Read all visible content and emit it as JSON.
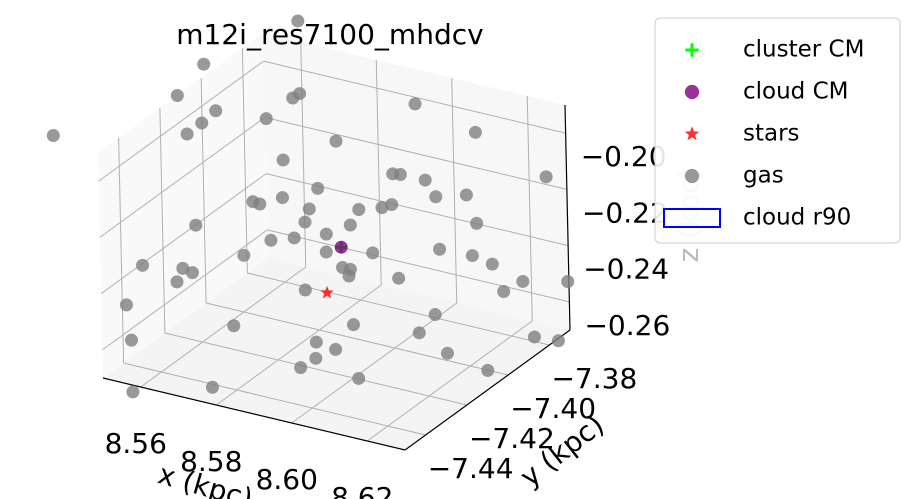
{
  "chart_data": {
    "type": "scatter3d",
    "title": "m12i_res7100_mhdcv",
    "xlabel": "x (kpc)",
    "ylabel": "y (kpc)",
    "zlabel": "z (kpc)",
    "xlim": [
      8.55,
      8.63
    ],
    "ylim": [
      -7.45,
      -7.37
    ],
    "zlim": [
      -0.27,
      -0.19
    ],
    "xticks": [
      8.56,
      8.58,
      {
        "value": 8.6,
        "label": "8.60"
      },
      8.62
    ],
    "yticks": [
      {
        "value": -7.44,
        "label": "−7.44"
      },
      {
        "value": -7.42,
        "label": "−7.42"
      },
      {
        "value": -7.4,
        "label": "−7.40"
      },
      {
        "value": -7.38,
        "label": "−7.38"
      }
    ],
    "zticks": [
      {
        "value": -0.26,
        "label": "−0.26"
      },
      {
        "value": -0.24,
        "label": "−0.24"
      },
      {
        "value": -0.22,
        "label": "−0.22"
      },
      {
        "value": -0.2,
        "label": "−0.20"
      }
    ],
    "grid": true,
    "legend": "upper right",
    "series": [
      {
        "name": "cluster CM",
        "color": "#00ff00",
        "marker": "plus",
        "x": [
          8.593
        ],
        "y": [
          -7.412
        ],
        "z": [
          -0.23
        ]
      },
      {
        "name": "cloud CM",
        "color": "#800080",
        "marker": "circle",
        "x": [
          8.593
        ],
        "y": [
          -7.412
        ],
        "z": [
          -0.23
        ]
      },
      {
        "name": "stars",
        "color": "#ff0000",
        "marker": "star",
        "x": [
          8.587
        ],
        "y": [
          -7.4085
        ],
        "z": [
          -0.25
        ]
      },
      {
        "name": "gas",
        "color": "#808080",
        "marker": "circle",
        "x": [
          8.541,
          8.552,
          8.565,
          8.578,
          8.59,
          8.603,
          8.617,
          8.628,
          8.636,
          8.547,
          8.559,
          8.571,
          8.584,
          8.596,
          8.609,
          8.622,
          8.633,
          8.545,
          8.556,
          8.568,
          8.58,
          8.593,
          8.605,
          8.618,
          8.63,
          8.55,
          8.562,
          8.575,
          8.587,
          8.599,
          8.612,
          8.624,
          8.638,
          8.543,
          8.555,
          8.567,
          8.581,
          8.592,
          8.606,
          8.619,
          8.631,
          8.548,
          8.561,
          8.573,
          8.586,
          8.598,
          8.611,
          8.625,
          8.635,
          8.553,
          8.566,
          8.579,
          8.591,
          8.602,
          8.615,
          8.627,
          8.558,
          8.57,
          8.583,
          8.595,
          8.608,
          8.62,
          8.546,
          8.588,
          8.594,
          8.597,
          8.585,
          8.6,
          8.591,
          8.589
        ],
        "y": [
          -7.455,
          -7.372,
          -7.431,
          -7.398,
          -7.445,
          -7.383,
          -7.426,
          -7.367,
          -7.412,
          -7.388,
          -7.452,
          -7.407,
          -7.376,
          -7.438,
          -7.395,
          -7.449,
          -7.381,
          -7.421,
          -7.364,
          -7.443,
          -7.402,
          -7.429,
          -7.371,
          -7.416,
          -7.392,
          -7.436,
          -7.378,
          -7.451,
          -7.405,
          -7.386,
          -7.441,
          -7.369,
          -7.424,
          -7.399,
          -7.447,
          -7.383,
          -7.418,
          -7.437,
          -7.375,
          -7.409,
          -7.453,
          -7.373,
          -7.427,
          -7.391,
          -7.446,
          -7.414,
          -7.379,
          -7.433,
          -7.396,
          -7.404,
          -7.365,
          -7.439,
          -7.419,
          -7.384,
          -7.448,
          -7.401,
          -7.428,
          -7.389,
          -7.457,
          -7.411,
          -7.374,
          -7.435,
          -7.393,
          -7.41,
          -7.405,
          -7.415,
          -7.42,
          -7.4,
          -7.408,
          -7.412
        ],
        "z": [
          -0.184,
          -0.262,
          -0.221,
          -0.276,
          -0.198,
          -0.243,
          -0.189,
          -0.255,
          -0.232,
          -0.209,
          -0.271,
          -0.194,
          -0.238,
          -0.258,
          -0.216,
          -0.203,
          -0.267,
          -0.247,
          -0.187,
          -0.229,
          -0.279,
          -0.212,
          -0.251,
          -0.196,
          -0.241,
          -0.264,
          -0.205,
          -0.224,
          -0.272,
          -0.191,
          -0.236,
          -0.218,
          -0.253,
          -0.199,
          -0.244,
          -0.269,
          -0.213,
          -0.186,
          -0.227,
          -0.261,
          -0.207,
          -0.249,
          -0.192,
          -0.234,
          -0.217,
          -0.274,
          -0.201,
          -0.239,
          -0.257,
          -0.182,
          -0.226,
          -0.248,
          -0.206,
          -0.266,
          -0.214,
          -0.231,
          -0.245,
          -0.195,
          -0.259,
          -0.222,
          -0.237,
          -0.183,
          -0.211,
          -0.228,
          -0.22,
          -0.235,
          -0.225,
          -0.219,
          -0.24,
          -0.233
        ]
      },
      {
        "name": "cloud r90",
        "color": "#0000ff",
        "marker": "rect"
      }
    ]
  }
}
